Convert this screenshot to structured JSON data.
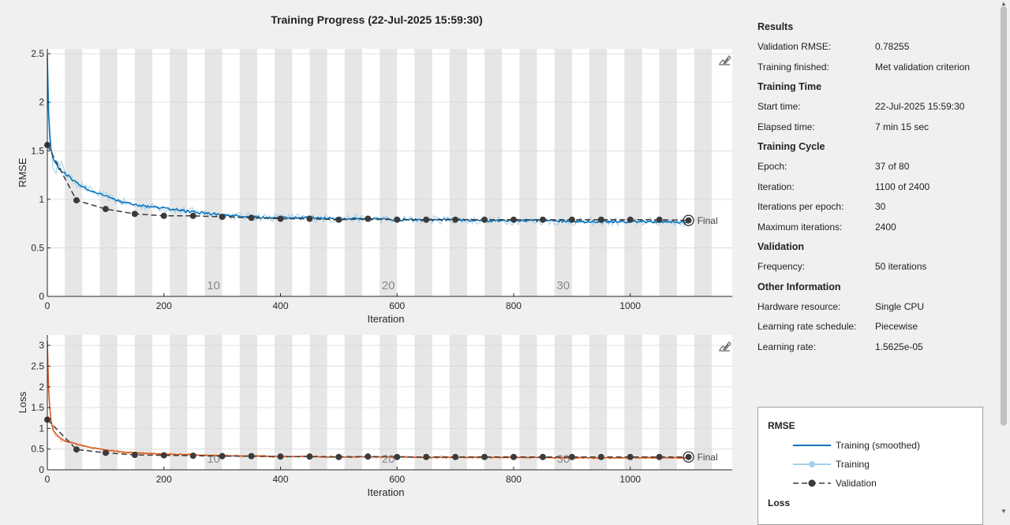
{
  "window": {
    "title": "Training Progress (22-Jul-2025 15:59:30)"
  },
  "icons": {
    "export": "pencil-chart-icon",
    "scroll_up": "triangle-up-icon",
    "scroll_down": "triangle-down-icon"
  },
  "colors": {
    "rmse": "#0072bd",
    "rmse_raw": "#a6cee8",
    "loss": "#d95319",
    "loss_raw": "#f4b183",
    "validation": "#3b3b3b",
    "epoch_band": "#e6e6e6"
  },
  "chart_data": [
    {
      "type": "line",
      "title": "",
      "xlabel": "Iteration",
      "ylabel": "RMSE",
      "xlim": [
        0,
        1175
      ],
      "ylim": [
        0,
        2.55
      ],
      "xticks": [
        0,
        200,
        400,
        600,
        800,
        1000
      ],
      "yticks": [
        0,
        0.5,
        1,
        1.5,
        2,
        2.5
      ],
      "ytick_labels": [
        "0",
        "0.5",
        "1",
        "1.5",
        "2",
        "2.5"
      ],
      "epoch_labels": [
        {
          "label": "10",
          "x": 285
        },
        {
          "label": "20",
          "x": 585
        },
        {
          "label": "30",
          "x": 885
        }
      ],
      "annotation": "Final",
      "series": [
        {
          "name": "Training (smoothed)",
          "x": [
            0,
            2,
            5,
            10,
            20,
            30,
            40,
            50,
            70,
            100,
            130,
            150,
            200,
            250,
            300,
            350,
            400,
            450,
            500,
            550,
            600,
            650,
            700,
            750,
            800,
            850,
            900,
            950,
            1000,
            1050,
            1100
          ],
          "y": [
            2.5,
            1.9,
            1.55,
            1.42,
            1.32,
            1.27,
            1.22,
            1.17,
            1.1,
            1.03,
            0.97,
            0.94,
            0.91,
            0.87,
            0.84,
            0.82,
            0.81,
            0.81,
            0.8,
            0.8,
            0.79,
            0.79,
            0.79,
            0.78,
            0.78,
            0.78,
            0.77,
            0.77,
            0.77,
            0.77,
            0.76
          ]
        },
        {
          "name": "Validation",
          "x": [
            0,
            50,
            100,
            150,
            200,
            250,
            300,
            350,
            400,
            450,
            500,
            550,
            600,
            650,
            700,
            750,
            800,
            850,
            900,
            950,
            1000,
            1050,
            1100
          ],
          "y": [
            1.56,
            0.99,
            0.9,
            0.85,
            0.83,
            0.83,
            0.82,
            0.81,
            0.8,
            0.8,
            0.79,
            0.8,
            0.79,
            0.79,
            0.79,
            0.79,
            0.79,
            0.79,
            0.79,
            0.79,
            0.79,
            0.79,
            0.78255
          ]
        }
      ]
    },
    {
      "type": "line",
      "title": "",
      "xlabel": "Iteration",
      "ylabel": "Loss",
      "xlim": [
        0,
        1175
      ],
      "ylim": [
        0,
        3.25
      ],
      "xticks": [
        0,
        200,
        400,
        600,
        800,
        1000
      ],
      "yticks": [
        0,
        0.5,
        1,
        1.5,
        2,
        2.5,
        3
      ],
      "ytick_labels": [
        "0",
        "0.5",
        "1",
        "1.5",
        "2",
        "2.5",
        "3"
      ],
      "epoch_labels": [
        {
          "label": "10",
          "x": 285
        },
        {
          "label": "20",
          "x": 585
        },
        {
          "label": "30",
          "x": 885
        }
      ],
      "annotation": "Final",
      "series": [
        {
          "name": "Training (smoothed)",
          "x": [
            0,
            2,
            5,
            10,
            20,
            30,
            40,
            50,
            70,
            100,
            130,
            150,
            200,
            250,
            300,
            350,
            400,
            450,
            500,
            550,
            600,
            650,
            700,
            750,
            800,
            850,
            900,
            950,
            1000,
            1050,
            1100
          ],
          "y": [
            3.1,
            2.0,
            1.3,
            0.95,
            0.78,
            0.7,
            0.66,
            0.62,
            0.55,
            0.48,
            0.43,
            0.41,
            0.38,
            0.36,
            0.34,
            0.33,
            0.32,
            0.32,
            0.31,
            0.31,
            0.31,
            0.3,
            0.3,
            0.3,
            0.3,
            0.3,
            0.29,
            0.29,
            0.29,
            0.29,
            0.29
          ]
        },
        {
          "name": "Validation",
          "x": [
            0,
            50,
            100,
            150,
            200,
            250,
            300,
            350,
            400,
            450,
            500,
            550,
            600,
            650,
            700,
            750,
            800,
            850,
            900,
            950,
            1000,
            1050,
            1100
          ],
          "y": [
            1.21,
            0.49,
            0.41,
            0.36,
            0.35,
            0.34,
            0.33,
            0.33,
            0.32,
            0.32,
            0.31,
            0.32,
            0.31,
            0.31,
            0.31,
            0.31,
            0.31,
            0.31,
            0.31,
            0.31,
            0.31,
            0.31,
            0.31
          ]
        }
      ]
    }
  ],
  "info": {
    "sections": [
      {
        "title": "Results",
        "rows": [
          {
            "key": "Validation RMSE:",
            "value": "0.78255"
          },
          {
            "key": "Training finished:",
            "value": "Met validation criterion"
          }
        ]
      },
      {
        "title": "Training Time",
        "rows": [
          {
            "key": "Start time:",
            "value": "22-Jul-2025 15:59:30"
          },
          {
            "key": "Elapsed time:",
            "value": "7 min 15 sec"
          }
        ]
      },
      {
        "title": "Training Cycle",
        "rows": [
          {
            "key": "Epoch:",
            "value": "37 of 80"
          },
          {
            "key": "Iteration:",
            "value": "1100 of 2400"
          },
          {
            "key": "Iterations per epoch:",
            "value": "30"
          },
          {
            "key": "Maximum iterations:",
            "value": "2400"
          }
        ]
      },
      {
        "title": "Validation",
        "rows": [
          {
            "key": "Frequency:",
            "value": "50 iterations"
          }
        ]
      },
      {
        "title": "Other Information",
        "rows": [
          {
            "key": "Hardware resource:",
            "value": "Single CPU"
          },
          {
            "key": "Learning rate schedule:",
            "value": "Piecewise"
          },
          {
            "key": "Learning rate:",
            "value": "1.5625e-05"
          }
        ]
      }
    ]
  },
  "legend": {
    "rmse_title": "RMSE",
    "loss_title": "Loss",
    "items": [
      {
        "label": "Training (smoothed)",
        "style": "smoothed"
      },
      {
        "label": "Training",
        "style": "raw"
      },
      {
        "label": "Validation",
        "style": "validation"
      }
    ]
  }
}
